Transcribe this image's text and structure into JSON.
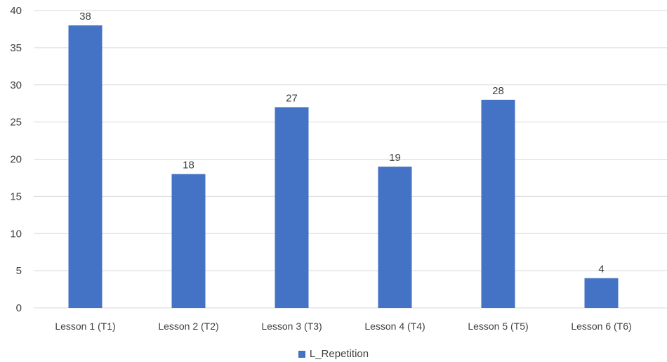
{
  "chart_data": {
    "type": "bar",
    "categories": [
      "Lesson 1 (T1)",
      "Lesson 2 (T2)",
      "Lesson 3 (T3)",
      "Lesson 4 (T4)",
      "Lesson 5 (T5)",
      "Lesson 6 (T6)"
    ],
    "series": [
      {
        "name": "L_Repetition",
        "values": [
          38,
          18,
          27,
          19,
          28,
          4
        ],
        "color": "#4472C4"
      }
    ],
    "ylim": [
      0,
      40
    ],
    "yticks": [
      0,
      5,
      10,
      15,
      20,
      25,
      30,
      35,
      40
    ],
    "grid": true,
    "data_labels": true,
    "legend_position": "bottom",
    "colors": {
      "gridline": "#d9d9d9",
      "text": "#404040"
    }
  }
}
